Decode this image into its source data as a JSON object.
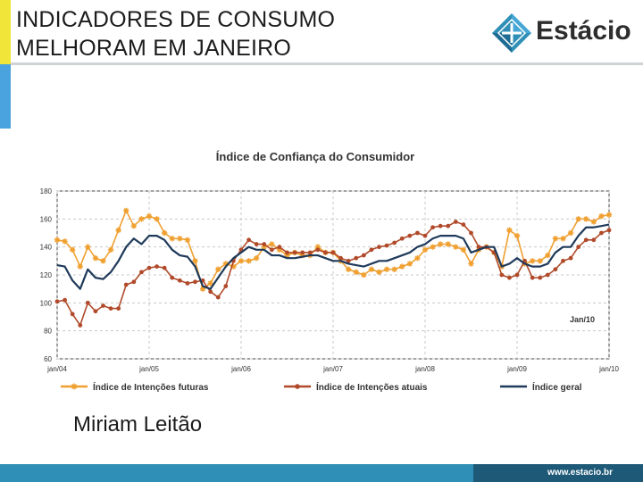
{
  "slide": {
    "title_line1": "INDICADORES DE CONSUMO",
    "title_line2": "MELHORAM EM JANEIRO",
    "logo_text": "Estácio",
    "author": "Miriam Leitão",
    "footer_url": "www.estacio.br"
  },
  "colors": {
    "futuras": "#f0a030",
    "atuais": "#b04a2a",
    "geral": "#1f3a5a",
    "grid": "#c8c8c8"
  },
  "chart_data": {
    "type": "line",
    "title": "Índice de Confiança do Consumidor",
    "annotation": "Jan/10",
    "ylim": [
      60,
      180
    ],
    "yticks": [
      60,
      80,
      100,
      120,
      140,
      160,
      180
    ],
    "xlim": [
      0,
      72
    ],
    "xtick_labels": [
      "jan/04",
      "jan/05",
      "jan/06",
      "jan/07",
      "jan/08",
      "jan/09",
      "jan/10"
    ],
    "xtick_positions": [
      0,
      12,
      24,
      36,
      48,
      60,
      72
    ],
    "grid": true,
    "legend_position": "bottom",
    "series": [
      {
        "name": "Índice de Intenções futuras",
        "key": "futuras",
        "marker": "star",
        "values": [
          145,
          144,
          138,
          126,
          140,
          132,
          130,
          138,
          152,
          166,
          155,
          160,
          162,
          160,
          150,
          146,
          146,
          145,
          130,
          110,
          114,
          124,
          128,
          126,
          130,
          130,
          132,
          140,
          142,
          138,
          134,
          136,
          134,
          134,
          140,
          136,
          136,
          130,
          124,
          122,
          120,
          124,
          122,
          124,
          124,
          126,
          128,
          132,
          138,
          140,
          142,
          142,
          140,
          138,
          128,
          138,
          140,
          136,
          126,
          152,
          148,
          128,
          130,
          130,
          134,
          146,
          146,
          150,
          160,
          160,
          158,
          162,
          163
        ]
      },
      {
        "name": "Índice de Intenções atuais",
        "key": "atuais",
        "marker": "circle",
        "values": [
          101,
          102,
          92,
          84,
          100,
          94,
          98,
          96,
          96,
          113,
          115,
          122,
          125,
          126,
          125,
          118,
          116,
          114,
          115,
          116,
          108,
          104,
          112,
          130,
          138,
          145,
          142,
          142,
          138,
          140,
          136,
          136,
          136,
          136,
          138,
          136,
          136,
          132,
          130,
          132,
          134,
          138,
          140,
          141,
          143,
          146,
          148,
          150,
          148,
          154,
          155,
          155,
          158,
          156,
          150,
          140,
          140,
          136,
          120,
          118,
          120,
          130,
          118,
          118,
          120,
          124,
          130,
          132,
          140,
          145,
          145,
          150,
          152
        ]
      },
      {
        "name": "Índice geral",
        "key": "geral",
        "marker": "none",
        "values": [
          127,
          126,
          116,
          110,
          124,
          118,
          117,
          122,
          130,
          140,
          146,
          142,
          148,
          148,
          145,
          138,
          134,
          133,
          126,
          112,
          110,
          118,
          126,
          132,
          136,
          140,
          138,
          138,
          134,
          134,
          132,
          132,
          133,
          134,
          134,
          132,
          130,
          130,
          128,
          127,
          126,
          128,
          130,
          130,
          132,
          134,
          136,
          140,
          142,
          146,
          148,
          148,
          148,
          146,
          136,
          138,
          140,
          140,
          126,
          128,
          132,
          128,
          126,
          126,
          128,
          136,
          140,
          140,
          148,
          154,
          154,
          155,
          156
        ]
      }
    ]
  }
}
